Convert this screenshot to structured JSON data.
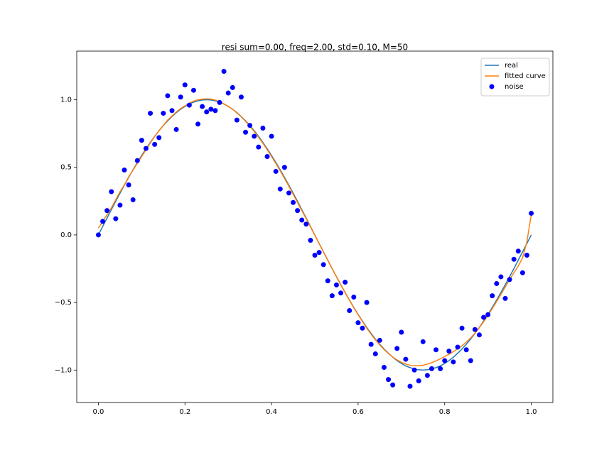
{
  "chart_data": {
    "type": "line",
    "title": "resi sum=0.00, freq=2.00, std=0.10, M=50",
    "x": [
      0,
      0.01,
      0.02,
      0.03,
      0.04,
      0.05,
      0.06,
      0.07,
      0.08,
      0.09,
      0.1,
      0.11,
      0.12,
      0.13,
      0.14,
      0.15,
      0.16,
      0.17,
      0.18,
      0.19,
      0.2,
      0.21,
      0.22,
      0.23,
      0.24,
      0.25,
      0.26,
      0.27,
      0.28,
      0.29,
      0.3,
      0.31,
      0.32,
      0.33,
      0.34,
      0.35,
      0.36,
      0.37,
      0.38,
      0.39,
      0.4,
      0.41,
      0.42,
      0.43,
      0.44,
      0.45,
      0.46,
      0.47,
      0.48,
      0.49,
      0.5,
      0.51,
      0.52,
      0.53,
      0.54,
      0.55,
      0.56,
      0.57,
      0.58,
      0.59,
      0.6,
      0.61,
      0.62,
      0.63,
      0.64,
      0.65,
      0.66,
      0.67,
      0.68,
      0.69,
      0.7,
      0.71,
      0.72,
      0.73,
      0.74,
      0.75,
      0.76,
      0.77,
      0.78,
      0.79,
      0.8,
      0.81,
      0.82,
      0.83,
      0.84,
      0.85,
      0.86,
      0.87,
      0.88,
      0.89,
      0.9,
      0.91,
      0.92,
      0.93,
      0.94,
      0.95,
      0.96,
      0.97,
      0.98,
      0.99,
      1
    ],
    "series": [
      {
        "name": "real",
        "kind": "line",
        "color": "#1f77b4",
        "values": [
          0,
          0.063,
          0.125,
          0.187,
          0.249,
          0.309,
          0.368,
          0.426,
          0.482,
          0.536,
          0.588,
          0.637,
          0.685,
          0.729,
          0.771,
          0.809,
          0.844,
          0.876,
          0.905,
          0.93,
          0.951,
          0.969,
          0.982,
          0.992,
          0.998,
          1,
          0.998,
          0.992,
          0.982,
          0.969,
          0.951,
          0.93,
          0.905,
          0.876,
          0.844,
          0.809,
          0.771,
          0.729,
          0.685,
          0.637,
          0.588,
          0.536,
          0.482,
          0.426,
          0.368,
          0.309,
          0.249,
          0.187,
          0.125,
          0.063,
          0,
          -0.063,
          -0.125,
          -0.187,
          -0.249,
          -0.309,
          -0.368,
          -0.426,
          -0.482,
          -0.536,
          -0.588,
          -0.637,
          -0.685,
          -0.729,
          -0.771,
          -0.809,
          -0.844,
          -0.876,
          -0.905,
          -0.93,
          -0.951,
          -0.969,
          -0.982,
          -0.992,
          -0.998,
          -1,
          -0.998,
          -0.992,
          -0.982,
          -0.969,
          -0.951,
          -0.93,
          -0.905,
          -0.876,
          -0.844,
          -0.809,
          -0.771,
          -0.729,
          -0.685,
          -0.637,
          -0.588,
          -0.536,
          -0.482,
          -0.426,
          -0.368,
          -0.309,
          -0.249,
          -0.187,
          -0.125,
          -0.063,
          0
        ]
      },
      {
        "name": "fitted curve",
        "kind": "line",
        "color": "#ff7f0e",
        "values": [
          0.05,
          0.1,
          0.15,
          0.2,
          0.26,
          0.32,
          0.37,
          0.43,
          0.48,
          0.53,
          0.58,
          0.63,
          0.68,
          0.73,
          0.77,
          0.81,
          0.85,
          0.88,
          0.91,
          0.935,
          0.955,
          0.975,
          0.99,
          1.0,
          1.005,
          1.007,
          1.005,
          0.998,
          0.985,
          0.97,
          0.952,
          0.93,
          0.903,
          0.874,
          0.84,
          0.805,
          0.765,
          0.722,
          0.678,
          0.63,
          0.58,
          0.528,
          0.474,
          0.418,
          0.36,
          0.3,
          0.24,
          0.18,
          0.12,
          0.06,
          -0.002,
          -0.064,
          -0.126,
          -0.188,
          -0.25,
          -0.31,
          -0.37,
          -0.428,
          -0.484,
          -0.538,
          -0.59,
          -0.64,
          -0.69,
          -0.735,
          -0.776,
          -0.814,
          -0.848,
          -0.878,
          -0.904,
          -0.925,
          -0.942,
          -0.955,
          -0.964,
          -0.968,
          -0.968,
          -0.964,
          -0.956,
          -0.945,
          -0.932,
          -0.917,
          -0.9,
          -0.883,
          -0.864,
          -0.843,
          -0.82,
          -0.793,
          -0.762,
          -0.727,
          -0.687,
          -0.643,
          -0.595,
          -0.545,
          -0.493,
          -0.44,
          -0.385,
          -0.33,
          -0.28,
          -0.23,
          -0.17,
          -0.05,
          0.15
        ]
      },
      {
        "name": "noise",
        "kind": "scatter",
        "color": "#0000ff",
        "values": [
          0,
          0.1,
          0.18,
          0.32,
          0.12,
          0.22,
          0.48,
          0.37,
          0.26,
          0.55,
          0.7,
          0.64,
          0.9,
          0.67,
          0.72,
          0.9,
          1.03,
          0.92,
          0.78,
          1.02,
          1.11,
          0.96,
          1.07,
          0.82,
          0.95,
          0.91,
          0.93,
          0.92,
          0.98,
          1.21,
          1.05,
          1.09,
          0.85,
          1.02,
          0.76,
          0.81,
          0.73,
          0.65,
          0.79,
          0.58,
          0.73,
          0.47,
          0.34,
          0.5,
          0.31,
          0.24,
          0.18,
          0.11,
          0.08,
          -0.04,
          -0.15,
          -0.13,
          -0.22,
          -0.34,
          -0.45,
          -0.37,
          -0.43,
          -0.35,
          -0.56,
          -0.46,
          -0.65,
          -0.69,
          -0.5,
          -0.81,
          -0.88,
          -0.78,
          -0.98,
          -1.07,
          -1.11,
          -0.84,
          -0.72,
          -0.92,
          -1.12,
          -1,
          -1.08,
          -0.79,
          -1.04,
          -0.99,
          -0.85,
          -0.99,
          -0.93,
          -0.86,
          -0.94,
          -0.83,
          -0.69,
          -0.85,
          -0.93,
          -0.7,
          -0.74,
          -0.61,
          -0.59,
          -0.45,
          -0.36,
          -0.31,
          -0.47,
          -0.33,
          -0.18,
          -0.12,
          -0.28,
          -0.15,
          0.16
        ]
      }
    ],
    "xlim": [
      -0.05,
      1.05
    ],
    "ylim": [
      -1.24,
      1.36
    ],
    "xticks": [
      {
        "value": 0,
        "label": "0.0"
      },
      {
        "value": 0.2,
        "label": "0.2"
      },
      {
        "value": 0.4,
        "label": "0.4"
      },
      {
        "value": 0.6,
        "label": "0.6"
      },
      {
        "value": 0.8,
        "label": "0.8"
      },
      {
        "value": 1,
        "label": "1.0"
      }
    ],
    "yticks": [
      {
        "value": -1,
        "label": "−1.0"
      },
      {
        "value": -0.5,
        "label": "−0.5"
      },
      {
        "value": 0,
        "label": "0.0"
      },
      {
        "value": 0.5,
        "label": "0.5"
      },
      {
        "value": 1,
        "label": "1.0"
      }
    ],
    "legend": "upper right"
  }
}
